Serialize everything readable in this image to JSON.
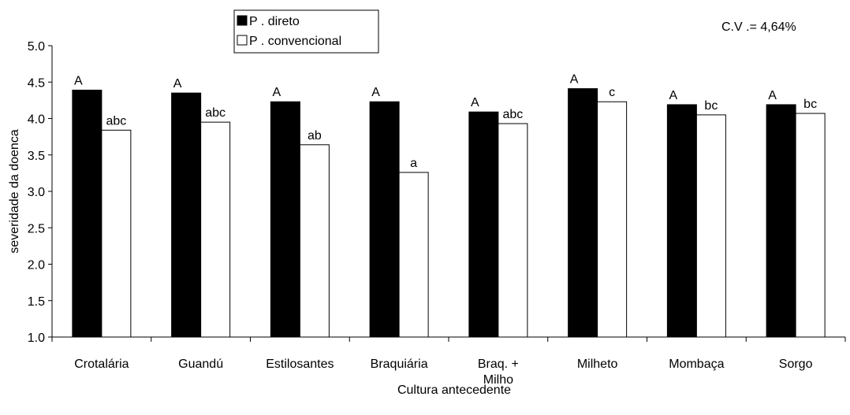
{
  "chart_data": {
    "type": "bar",
    "categories": [
      [
        "Crotalária"
      ],
      [
        "Guandú"
      ],
      [
        "Estilosantes"
      ],
      [
        "Braquiária"
      ],
      [
        "Braq. +",
        "Milho"
      ],
      [
        "Milheto"
      ],
      [
        "Mombaça"
      ],
      [
        "Sorgo"
      ]
    ],
    "series": [
      {
        "name": "P . direto",
        "color": "#000000",
        "values": [
          4.39,
          4.35,
          4.23,
          4.23,
          4.09,
          4.41,
          4.19,
          4.19
        ],
        "labels": [
          "A",
          "A",
          "A",
          "A",
          "A",
          "A",
          "A",
          "A"
        ]
      },
      {
        "name": "P . convencional",
        "color": "#ffffff",
        "values": [
          3.84,
          3.95,
          3.64,
          3.26,
          3.93,
          4.23,
          4.05,
          4.07
        ],
        "labels": [
          "abc",
          "abc",
          "ab",
          "a",
          "abc",
          "c",
          "bc",
          "bc"
        ]
      }
    ],
    "xlabel": "Cultura antecedente",
    "ylabel": "severidade da doenca",
    "ylim": [
      1.0,
      5.0
    ],
    "yticks": [
      "1.0",
      "1.5",
      "2.0",
      "2.5",
      "3.0",
      "3.5",
      "4.0",
      "4.5",
      "5.0"
    ],
    "grid": false,
    "legend_position": "top-left",
    "annotation": "C.V .= 4,64%"
  }
}
